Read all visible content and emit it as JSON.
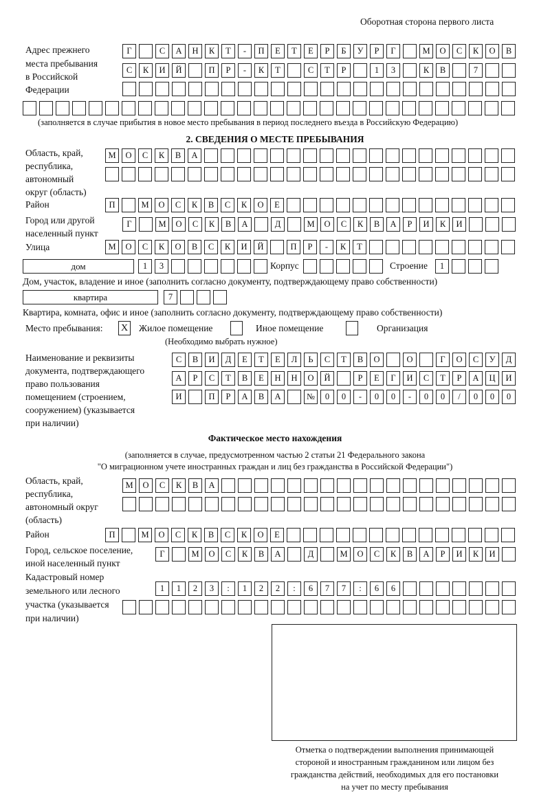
{
  "header": {
    "side_note": "Оборотная сторона первого листа"
  },
  "prev_address": {
    "label": [
      "Адрес прежнего",
      "места пребывания",
      "в Российской",
      "Федерации"
    ],
    "rows": [
      [
        "Г",
        "",
        "С",
        "А",
        "Н",
        "К",
        "Т",
        "-",
        "П",
        "Е",
        "Т",
        "Е",
        "Р",
        "Б",
        "У",
        "Р",
        "Г",
        "",
        "М",
        "О",
        "С",
        "К",
        "О",
        "В"
      ],
      [
        "С",
        "К",
        "И",
        "Й",
        "",
        "П",
        "Р",
        "-",
        "К",
        "Т",
        "",
        "С",
        "Т",
        "Р",
        "",
        "1",
        "3",
        "",
        "К",
        "В",
        "",
        "7",
        "",
        ""
      ],
      [
        "",
        "",
        "",
        "",
        "",
        "",
        "",
        "",
        "",
        "",
        "",
        "",
        "",
        "",
        "",
        "",
        "",
        "",
        "",
        "",
        "",
        "",
        "",
        ""
      ],
      [
        "",
        "",
        "",
        "",
        "",
        "",
        "",
        "",
        "",
        "",
        "",
        "",
        "",
        "",
        "",
        "",
        "",
        "",
        "",
        "",
        "",
        "",
        "",
        "",
        "",
        "",
        "",
        "",
        "",
        ""
      ]
    ],
    "note": "(заполняется в случае прибытия в новое место пребывания в период последнего въезда в Российскую Федерацию)"
  },
  "section2": {
    "title": "2. СВЕДЕНИЯ О МЕСТЕ ПРЕБЫВАНИЯ",
    "region_label": [
      "Область, край,",
      "республика,",
      "автономный",
      "округ (область)"
    ],
    "region_rows": [
      [
        "М",
        "О",
        "С",
        "К",
        "В",
        "А",
        "",
        "",
        "",
        "",
        "",
        "",
        "",
        "",
        "",
        "",
        "",
        "",
        "",
        "",
        "",
        "",
        "",
        "",
        ""
      ],
      [
        "",
        "",
        "",
        "",
        "",
        "",
        "",
        "",
        "",
        "",
        "",
        "",
        "",
        "",
        "",
        "",
        "",
        "",
        "",
        "",
        "",
        "",
        "",
        "",
        ""
      ]
    ],
    "district_label": "Район",
    "district": [
      "П",
      "",
      "М",
      "О",
      "С",
      "К",
      "В",
      "С",
      "К",
      "О",
      "Е",
      "",
      "",
      "",
      "",
      "",
      "",
      "",
      "",
      "",
      "",
      "",
      "",
      "",
      ""
    ],
    "city_label": [
      "Город или другой",
      "населенный пункт"
    ],
    "city": [
      "Г",
      "",
      "М",
      "О",
      "С",
      "К",
      "В",
      "А",
      "",
      "Д",
      "",
      "М",
      "О",
      "С",
      "К",
      "В",
      "А",
      "Р",
      "И",
      "К",
      "И",
      "",
      "",
      ""
    ],
    "street_label": "Улица",
    "street": [
      "М",
      "О",
      "С",
      "К",
      "О",
      "В",
      "С",
      "К",
      "И",
      "Й",
      "",
      "П",
      "Р",
      "-",
      "К",
      "Т",
      "",
      "",
      "",
      "",
      "",
      "",
      "",
      "",
      ""
    ],
    "house_type": "дом",
    "house": [
      "1",
      "3",
      "",
      "",
      "",
      "",
      "",
      ""
    ],
    "korpus_label": "Корпус",
    "korpus": [
      "",
      "",
      "",
      "",
      ""
    ],
    "building_label": "Строение",
    "building": [
      "1",
      "",
      "",
      ""
    ],
    "house_note": "Дом, участок, владение и иное (заполнить согласно документу, подтверждающему право собственности)",
    "apartment_type": "квартира",
    "apartment": [
      "7",
      "",
      "",
      ""
    ],
    "apartment_note": "Квартира, комната, офис и иное (заполнить согласно документу, подтверждающему право собственности)",
    "stay_place_label": "Место пребывания:",
    "options": [
      {
        "label": "Жилое помещение",
        "mark": "X"
      },
      {
        "label": "Иное помещение",
        "mark": ""
      },
      {
        "label": "Организация",
        "mark": ""
      }
    ],
    "choose_note": "(Необходимо выбрать нужное)",
    "doc_label": [
      "Наименование и реквизиты",
      "документа, подтверждающего",
      "право пользования",
      "помещением (строением,",
      "сооружением) (указывается",
      "при наличии)"
    ],
    "doc_rows": [
      [
        "С",
        "В",
        "И",
        "Д",
        "Е",
        "Т",
        "Е",
        "Л",
        "Ь",
        "С",
        "Т",
        "В",
        "О",
        "",
        "О",
        "",
        "Г",
        "О",
        "С",
        "У",
        "Д"
      ],
      [
        "А",
        "Р",
        "С",
        "Т",
        "В",
        "Е",
        "Н",
        "Н",
        "О",
        "Й",
        "",
        "Р",
        "Е",
        "Г",
        "И",
        "С",
        "Т",
        "Р",
        "А",
        "Ц",
        "И"
      ],
      [
        "И",
        "",
        "П",
        "Р",
        "А",
        "В",
        "А",
        "",
        "№",
        "0",
        "0",
        "-",
        "0",
        "0",
        "-",
        "0",
        "0",
        "/",
        "0",
        "0",
        "0"
      ]
    ]
  },
  "actual": {
    "title": "Фактическое место нахождения",
    "note": [
      "(заполняется в случае, предусмотренном частью 2 статьи 21 Федерального закона",
      "\"О миграционном учете иностранных граждан и лиц без гражданства в Российской Федерации\")"
    ],
    "region_label": [
      "Область, край,",
      "республика,",
      "автономный округ",
      "(область)"
    ],
    "region_rows": [
      [
        "М",
        "О",
        "С",
        "К",
        "В",
        "А",
        "",
        "",
        "",
        "",
        "",
        "",
        "",
        "",
        "",
        "",
        "",
        "",
        "",
        "",
        "",
        "",
        "",
        ""
      ],
      [
        "",
        "",
        "",
        "",
        "",
        "",
        "",
        "",
        "",
        "",
        "",
        "",
        "",
        "",
        "",
        "",
        "",
        "",
        "",
        "",
        "",
        "",
        "",
        ""
      ]
    ],
    "district_label": "Район",
    "district": [
      "П",
      "",
      "М",
      "О",
      "С",
      "К",
      "В",
      "С",
      "К",
      "О",
      "Е",
      "",
      "",
      "",
      "",
      "",
      "",
      "",
      "",
      "",
      "",
      "",
      "",
      "",
      ""
    ],
    "city_label": [
      "Город, сельское поселение,",
      "иной населенный пункт"
    ],
    "city": [
      "Г",
      "",
      "М",
      "О",
      "С",
      "К",
      "В",
      "А",
      "",
      "Д",
      "",
      "М",
      "О",
      "С",
      "К",
      "В",
      "А",
      "Р",
      "И",
      "К",
      "И",
      ""
    ],
    "cadastre_label": [
      "Кадастровый номер",
      "земельного или лесного",
      "участка (указывается",
      "при наличии)"
    ],
    "cadastre_rows": [
      [
        "1",
        "1",
        "2",
        "3",
        ":",
        "1",
        "2",
        "2",
        ":",
        "6",
        "7",
        "7",
        ":",
        "6",
        "6",
        "",
        "",
        "",
        "",
        "",
        "",
        ""
      ],
      [
        "",
        "",
        "",
        "",
        "",
        "",
        "",
        "",
        "",
        "",
        "",
        "",
        "",
        "",
        "",
        "",
        "",
        "",
        "",
        "",
        "",
        "",
        "",
        ""
      ]
    ]
  },
  "confirmation": {
    "caption": [
      "Отметка о подтверждении выполнения принимающей",
      "стороной и иностранным гражданином или лицом без",
      "гражданства действий, необходимых для его постановки",
      "на учет по месту пребывания"
    ]
  }
}
